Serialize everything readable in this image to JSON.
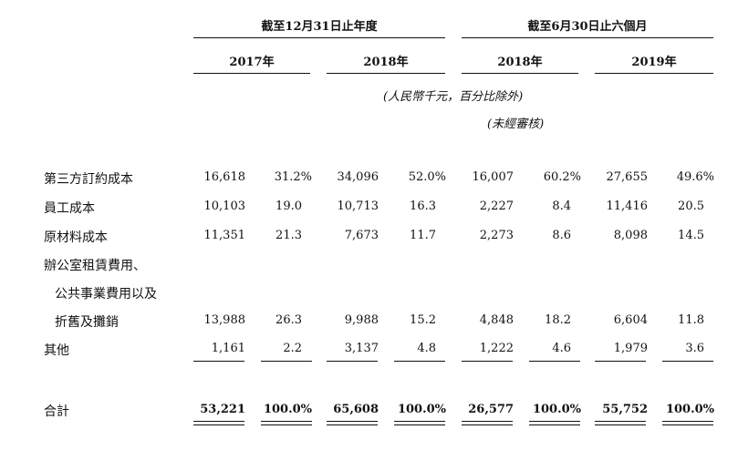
{
  "header": {
    "group_fy": "截至12月31日止年度",
    "group_6m": "截至6月30日止六個月",
    "years": [
      "2017年",
      "2018年",
      "2018年",
      "2019年"
    ],
    "unit_note": "(人民幣千元，百分比除外)",
    "unaudited_note": "(未經審核)"
  },
  "rows": [
    {
      "label": "第三方訂約成本",
      "values": [
        "16,618",
        "31.2%",
        "34,096",
        "52.0%",
        "16,007",
        "60.2%",
        "27,655",
        "49.6%"
      ]
    },
    {
      "label": "員工成本",
      "values": [
        "10,103",
        "19.0",
        "10,713",
        "16.3",
        "2,227",
        "8.4",
        "11,416",
        "20.5"
      ]
    },
    {
      "label": "原材料成本",
      "values": [
        "11,351",
        "21.3",
        "7,673",
        "11.7",
        "2,273",
        "8.6",
        "8,098",
        "14.5"
      ]
    },
    {
      "label": "辦公室租賃費用、",
      "values": []
    },
    {
      "label": "公共事業費用以及",
      "values": []
    },
    {
      "label": "折舊及攤銷",
      "values": [
        "13,988",
        "26.3",
        "9,988",
        "15.2",
        "4,848",
        "18.2",
        "6,604",
        "11.8"
      ]
    },
    {
      "label": "其他",
      "values": [
        "1,161",
        "2.2",
        "3,137",
        "4.8",
        "1,222",
        "4.6",
        "1,979",
        "3.6"
      ]
    }
  ],
  "total": {
    "label": "合計",
    "values": [
      "53,221",
      "100.0%",
      "65,608",
      "100.0%",
      "26,577",
      "100.0%",
      "55,752",
      "100.0%"
    ]
  }
}
